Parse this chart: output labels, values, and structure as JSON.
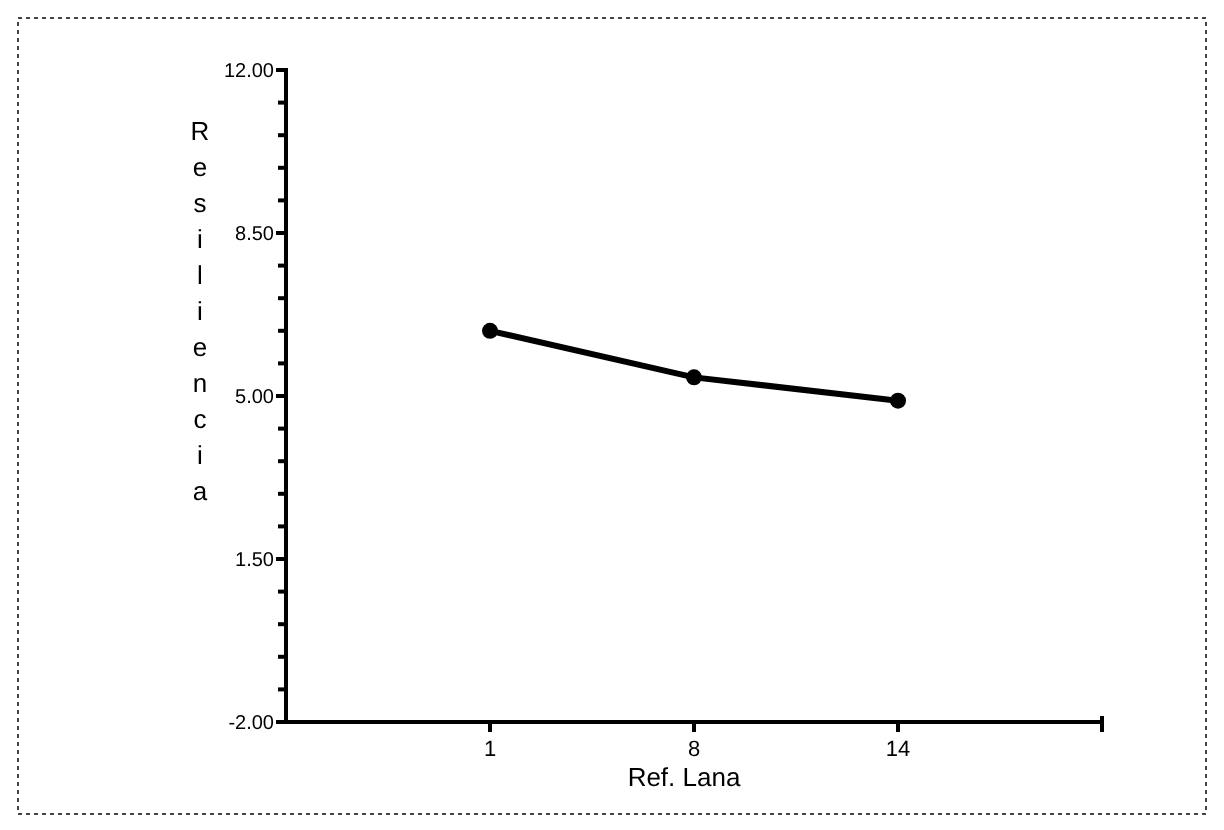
{
  "chart_data": {
    "type": "line",
    "xlabel": "Ref. Lana",
    "ylabel": "Resiliencia",
    "categories": [
      "1",
      "8",
      "14"
    ],
    "series": [
      {
        "color": "#000000",
        "values": [
          6.4,
          5.4,
          4.9
        ]
      }
    ],
    "ylim": [
      -2,
      12
    ],
    "yticks": [
      {
        "value": -2,
        "label": "-2.00"
      },
      {
        "value": -1.3,
        "label": null
      },
      {
        "value": -0.6,
        "label": null
      },
      {
        "value": 0.1,
        "label": null
      },
      {
        "value": 0.8,
        "label": null
      },
      {
        "value": 1.5,
        "label": "1.50"
      },
      {
        "value": 2.2,
        "label": null
      },
      {
        "value": 2.9,
        "label": null
      },
      {
        "value": 3.6,
        "label": null
      },
      {
        "value": 4.3,
        "label": null
      },
      {
        "value": 5,
        "label": "5.00"
      },
      {
        "value": 5.7,
        "label": null
      },
      {
        "value": 6.4,
        "label": null
      },
      {
        "value": 7.1,
        "label": null
      },
      {
        "value": 7.8,
        "label": null
      },
      {
        "value": 8.5,
        "label": "8.50"
      },
      {
        "value": 9.2,
        "label": null
      },
      {
        "value": 9.9,
        "label": null
      },
      {
        "value": 10.6,
        "label": null
      },
      {
        "value": 11.3,
        "label": null
      },
      {
        "value": 12,
        "label": "12.00"
      }
    ],
    "marker": "circle",
    "line_style": "solid"
  }
}
